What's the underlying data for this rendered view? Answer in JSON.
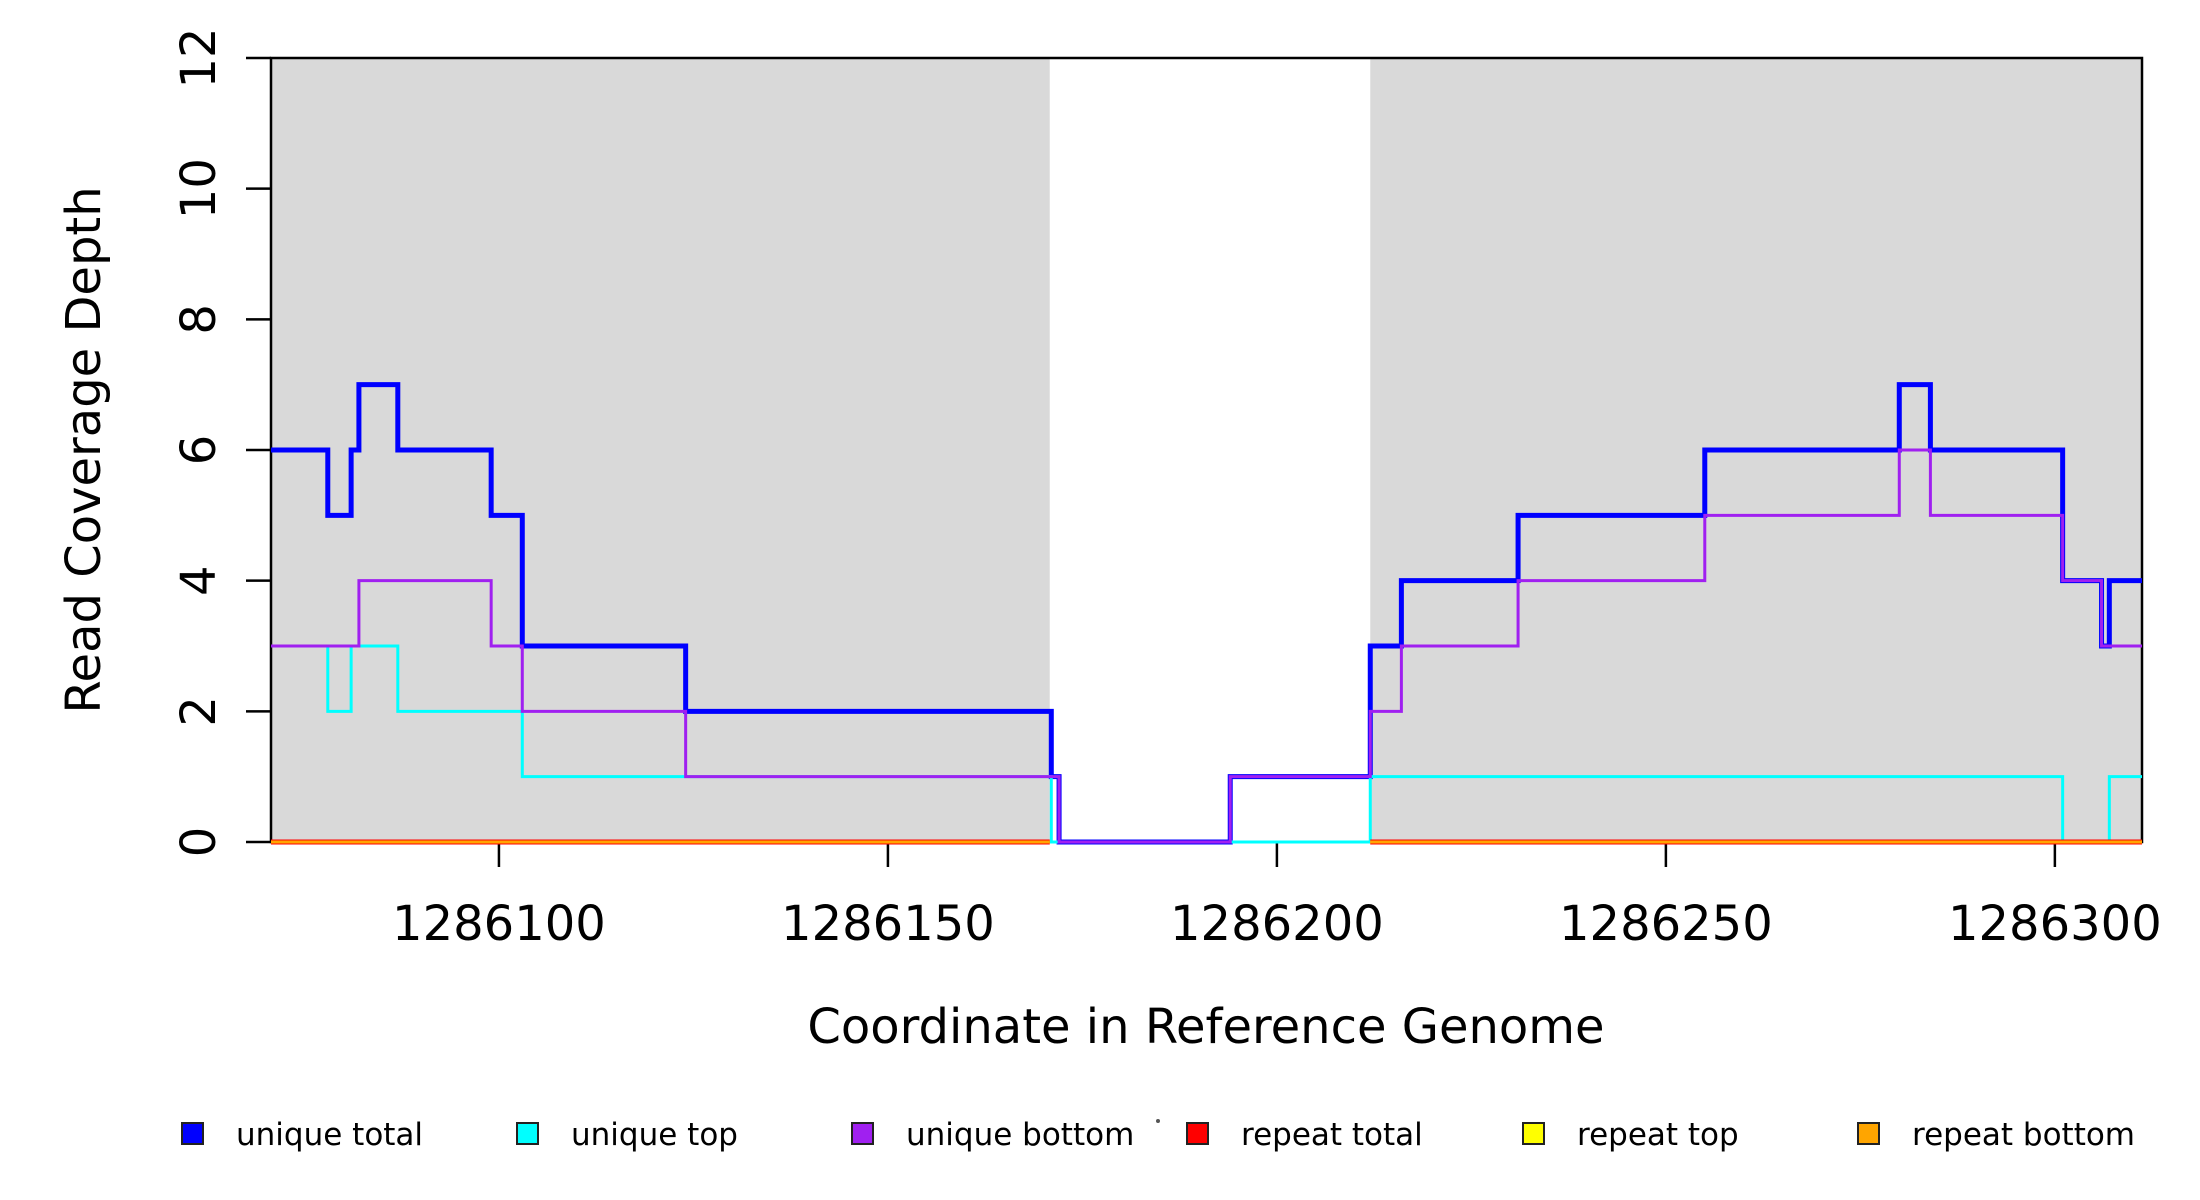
{
  "chart_data": {
    "type": "line",
    "subtype": "step",
    "title": "",
    "xlabel": "Coordinate in Reference Genome",
    "ylabel": "Read Coverage Depth",
    "xlim": [
      1286070.7,
      1286311.2
    ],
    "ylim": [
      0,
      12
    ],
    "x_ticks": [
      1286100,
      1286150,
      1286200,
      1286250,
      1286300
    ],
    "y_ticks": [
      0,
      2,
      4,
      6,
      8,
      10,
      12
    ],
    "grid": false,
    "legend_position": "bottom",
    "frame_color": "#000000",
    "background_color": "#FFFFFF",
    "shaded_regions": [
      {
        "label": "unique-region-left",
        "x_start": 1286070.7,
        "x_end": 1286170.8,
        "color": "#D9D9D9"
      },
      {
        "label": "unique-region-right",
        "x_start": 1286212.0,
        "x_end": 1286311.2,
        "color": "#D9D9D9"
      }
    ],
    "series": [
      {
        "name": "unique total",
        "color": "#0000FF",
        "line_width": 5,
        "segments": [
          {
            "x_end": 1286311.2,
            "steps": [
              [
                1286070.7,
                6
              ],
              [
                1286078,
                5
              ],
              [
                1286081,
                6
              ],
              [
                1286082,
                7
              ],
              [
                1286087,
                6
              ],
              [
                1286099,
                5
              ],
              [
                1286103,
                3
              ],
              [
                1286124,
                2
              ],
              [
                1286171,
                1
              ],
              [
                1286172,
                0
              ],
              [
                1286194,
                1
              ],
              [
                1286212,
                3
              ],
              [
                1286216,
                4
              ],
              [
                1286231,
                5
              ],
              [
                1286255,
                6
              ],
              [
                1286280,
                7
              ],
              [
                1286284,
                6
              ],
              [
                1286301,
                4
              ],
              [
                1286306,
                3
              ],
              [
                1286307,
                4
              ]
            ]
          }
        ]
      },
      {
        "name": "unique top",
        "color": "#00FFFF",
        "line_width": 3,
        "segments": [
          {
            "x_end": 1286311.2,
            "steps": [
              [
                1286070.7,
                3
              ],
              [
                1286078,
                2
              ],
              [
                1286081,
                3
              ],
              [
                1286087,
                2
              ],
              [
                1286103,
                1
              ],
              [
                1286171,
                0
              ],
              [
                1286212,
                1
              ],
              [
                1286301,
                0
              ],
              [
                1286307,
                1
              ]
            ]
          }
        ]
      },
      {
        "name": "unique bottom",
        "color": "#A020F0",
        "line_width": 3,
        "segments": [
          {
            "x_end": 1286311.2,
            "steps": [
              [
                1286070.7,
                3
              ],
              [
                1286082,
                4
              ],
              [
                1286099,
                3
              ],
              [
                1286103,
                2
              ],
              [
                1286124,
                1
              ],
              [
                1286172,
                0
              ],
              [
                1286194,
                1
              ],
              [
                1286212,
                2
              ],
              [
                1286216,
                3
              ],
              [
                1286231,
                4
              ],
              [
                1286255,
                5
              ],
              [
                1286280,
                6
              ],
              [
                1286284,
                5
              ],
              [
                1286301,
                4
              ],
              [
                1286306,
                3
              ]
            ]
          }
        ]
      },
      {
        "name": "repeat total",
        "color": "#FF0000",
        "line_width": 5,
        "segments": [
          {
            "x_end": 1286170.8,
            "steps": [
              [
                1286070.7,
                0
              ]
            ]
          },
          {
            "x_end": 1286311.2,
            "steps": [
              [
                1286212.0,
                0
              ]
            ]
          }
        ]
      },
      {
        "name": "repeat top",
        "color": "#FFFF00",
        "line_width": 3,
        "segments": [
          {
            "x_end": 1286170.8,
            "steps": [
              [
                1286070.7,
                0
              ]
            ]
          },
          {
            "x_end": 1286311.2,
            "steps": [
              [
                1286212.0,
                0
              ]
            ]
          }
        ]
      },
      {
        "name": "repeat bottom",
        "color": "#FFA500",
        "line_width": 3,
        "segments": [
          {
            "x_end": 1286170.8,
            "steps": [
              [
                1286070.7,
                0
              ]
            ]
          },
          {
            "x_end": 1286311.2,
            "steps": [
              [
                1286212.0,
                0
              ]
            ]
          }
        ]
      }
    ]
  }
}
